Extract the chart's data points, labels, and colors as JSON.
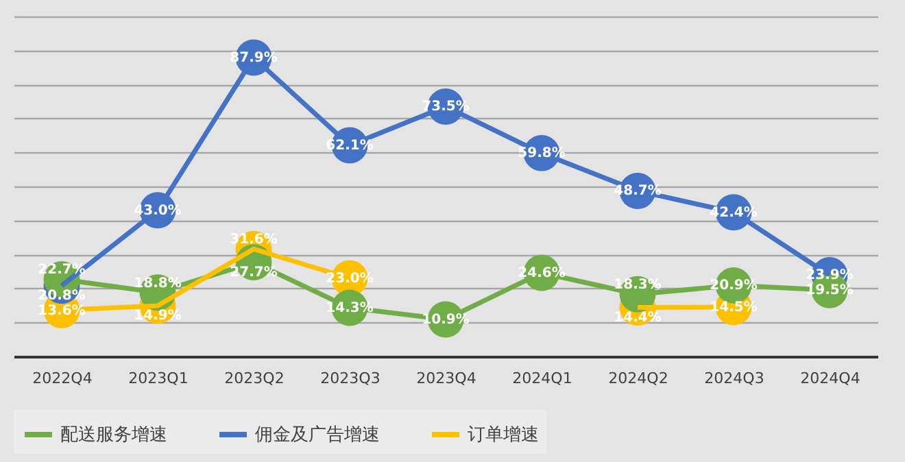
{
  "chart_data": {
    "type": "line",
    "categories": [
      "2022Q4",
      "2023Q1",
      "2023Q2",
      "2023Q3",
      "2023Q4",
      "2024Q1",
      "2024Q2",
      "2024Q3",
      "2024Q4"
    ],
    "series": [
      {
        "name": "配送服务增速",
        "color": "#70ad47",
        "values": [
          22.7,
          18.8,
          27.7,
          14.3,
          10.9,
          24.6,
          18.3,
          20.9,
          19.5
        ],
        "value_labels": [
          "22.7%",
          "18.8%",
          "27.7%",
          "14.3%",
          "10.9%",
          "24.6%",
          "18.3%",
          "20.9%",
          "19.5%"
        ]
      },
      {
        "name": "佣金及广告增速",
        "color": "#4472c4",
        "values": [
          20.8,
          43.0,
          87.9,
          62.1,
          73.5,
          59.8,
          48.7,
          42.4,
          23.9
        ],
        "value_labels": [
          "20.8%",
          "43.0%",
          "87.9%",
          "62.1%",
          "73.5%",
          "59.8%",
          "48.7%",
          "42.4%",
          "23.9%"
        ]
      },
      {
        "name": "订单增速",
        "color": "#ffc000",
        "values": [
          13.6,
          14.9,
          31.6,
          23.0,
          null,
          null,
          14.4,
          14.5,
          null
        ],
        "value_labels": [
          "13.6%",
          "14.9%",
          "31.6%",
          "23.0%",
          null,
          null,
          "14.4%",
          "14.5%",
          null
        ]
      }
    ],
    "ylim": [
      0,
      100
    ],
    "tick_labels": "x",
    "grid": "y",
    "legend": "bottom",
    "marker": "circle",
    "line_style": "solid"
  }
}
